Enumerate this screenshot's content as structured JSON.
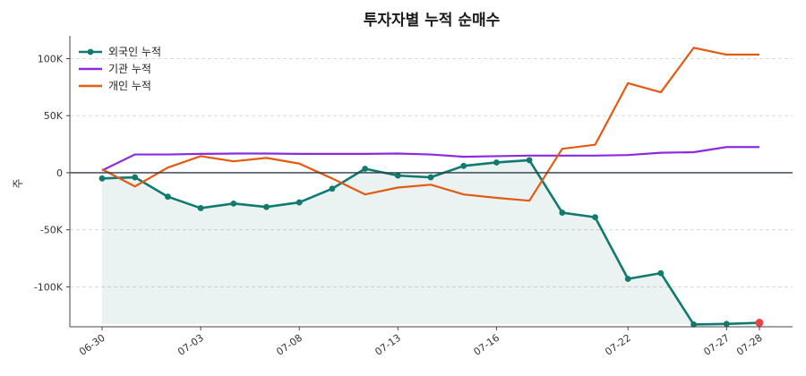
{
  "chart_data": {
    "type": "line",
    "title": "투자자별 누적 순매수",
    "xlabel": "",
    "ylabel": "주",
    "x": [
      "06-30",
      "07-01",
      "07-02",
      "07-03",
      "07-06",
      "07-07",
      "07-08",
      "07-09",
      "07-10",
      "07-13",
      "07-14",
      "07-15",
      "07-16",
      "07-17",
      "07-20",
      "07-21",
      "07-22",
      "07-23",
      "07-24",
      "07-27",
      "07-28"
    ],
    "x_tick_labels": [
      "06-30",
      "07-03",
      "07-08",
      "07-13",
      "07-16",
      "07-22",
      "07-27",
      "07-28"
    ],
    "ylim": [
      -135000,
      120000
    ],
    "y_ticks": [
      100000,
      50000,
      0,
      -50000,
      -100000
    ],
    "y_tick_labels": [
      "100K",
      "50K",
      "0",
      "-50K",
      "-100K"
    ],
    "grid": "horizontal dashed",
    "legend": "top-left",
    "series": [
      {
        "name": "외국인 누적",
        "color": "#117a6e",
        "marker": "circle",
        "fill": true,
        "values": [
          -5000,
          -4000,
          -21000,
          -31000,
          -27000,
          -30000,
          -26000,
          -14000,
          3500,
          -2500,
          -4000,
          6000,
          9000,
          11000,
          -35000,
          -39000,
          -93000,
          -88000,
          -133000,
          -132500,
          -131500
        ]
      },
      {
        "name": "기관 누적",
        "color": "#8a2be2",
        "values": [
          2000,
          16000,
          16000,
          16500,
          16800,
          16800,
          16500,
          16500,
          16500,
          16800,
          16000,
          14000,
          14500,
          15000,
          15000,
          15000,
          15500,
          17500,
          18000,
          22500,
          22500
        ]
      },
      {
        "name": "개인 누적",
        "color": "#e35a12",
        "values": [
          3000,
          -12000,
          4500,
          14500,
          10000,
          13000,
          8000,
          -5000,
          -19000,
          -13000,
          -10500,
          -19000,
          -22000,
          -24500,
          21000,
          24500,
          78500,
          70500,
          109500,
          103500,
          103500
        ]
      }
    ],
    "highlight_last_point_color": "#e84545"
  }
}
